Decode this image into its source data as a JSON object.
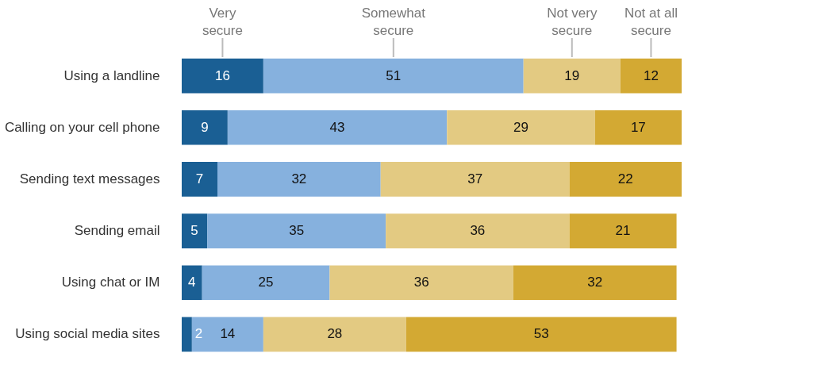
{
  "chart_data": {
    "type": "bar",
    "orientation": "horizontal",
    "stacked": true,
    "data_labels": true,
    "legend": "top",
    "grid": false,
    "categories": [
      "Using a landline",
      "Calling on your cell phone",
      "Sending text messages",
      "Sending email",
      "Using chat or IM",
      "Using social media sites"
    ],
    "series": [
      {
        "name": "Very secure",
        "color": "#1a5f94",
        "values": [
          16,
          9,
          7,
          5,
          4,
          2
        ]
      },
      {
        "name": "Somewhat secure",
        "color": "#86b1de",
        "values": [
          51,
          43,
          32,
          35,
          25,
          14
        ]
      },
      {
        "name": "Not very secure",
        "color": "#e3ca82",
        "values": [
          19,
          29,
          37,
          36,
          36,
          28
        ]
      },
      {
        "name": "Not at all secure",
        "color": "#d3a933",
        "values": [
          12,
          17,
          22,
          21,
          32,
          53
        ]
      }
    ]
  }
}
